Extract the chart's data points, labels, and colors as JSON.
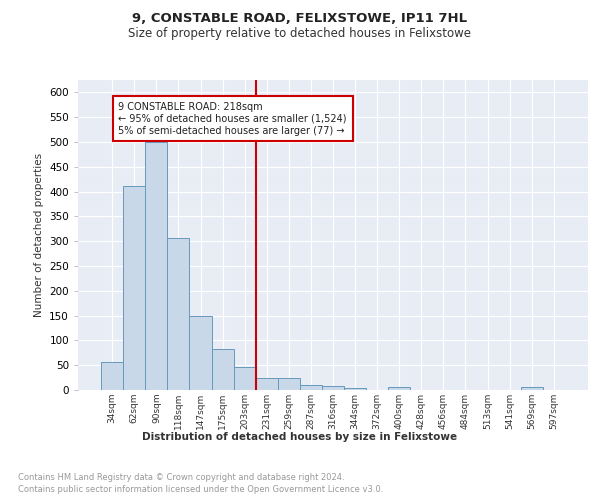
{
  "title": "9, CONSTABLE ROAD, FELIXSTOWE, IP11 7HL",
  "subtitle": "Size of property relative to detached houses in Felixstowe",
  "xlabel": "Distribution of detached houses by size in Felixstowe",
  "ylabel": "Number of detached properties",
  "bar_labels": [
    "34sqm",
    "62sqm",
    "90sqm",
    "118sqm",
    "147sqm",
    "175sqm",
    "203sqm",
    "231sqm",
    "259sqm",
    "287sqm",
    "316sqm",
    "344sqm",
    "372sqm",
    "400sqm",
    "428sqm",
    "456sqm",
    "484sqm",
    "513sqm",
    "541sqm",
    "569sqm",
    "597sqm"
  ],
  "bar_values": [
    57,
    411,
    500,
    307,
    150,
    83,
    46,
    25,
    25,
    11,
    8,
    5,
    0,
    6,
    0,
    0,
    0,
    0,
    0,
    6,
    0
  ],
  "bar_color": "#c8d8e8",
  "bar_edgecolor": "#6699bb",
  "vline_x": 6.5,
  "vline_color": "#cc0000",
  "annotation_text": "9 CONSTABLE ROAD: 218sqm\n← 95% of detached houses are smaller (1,524)\n5% of semi-detached houses are larger (77) →",
  "annotation_box_color": "#ffffff",
  "annotation_box_edgecolor": "#cc0000",
  "footer_line1": "Contains HM Land Registry data © Crown copyright and database right 2024.",
  "footer_line2": "Contains public sector information licensed under the Open Government Licence v3.0.",
  "background_color": "#e8edf5",
  "ylim": [
    0,
    625
  ],
  "yticks": [
    0,
    50,
    100,
    150,
    200,
    250,
    300,
    350,
    400,
    450,
    500,
    550,
    600
  ]
}
